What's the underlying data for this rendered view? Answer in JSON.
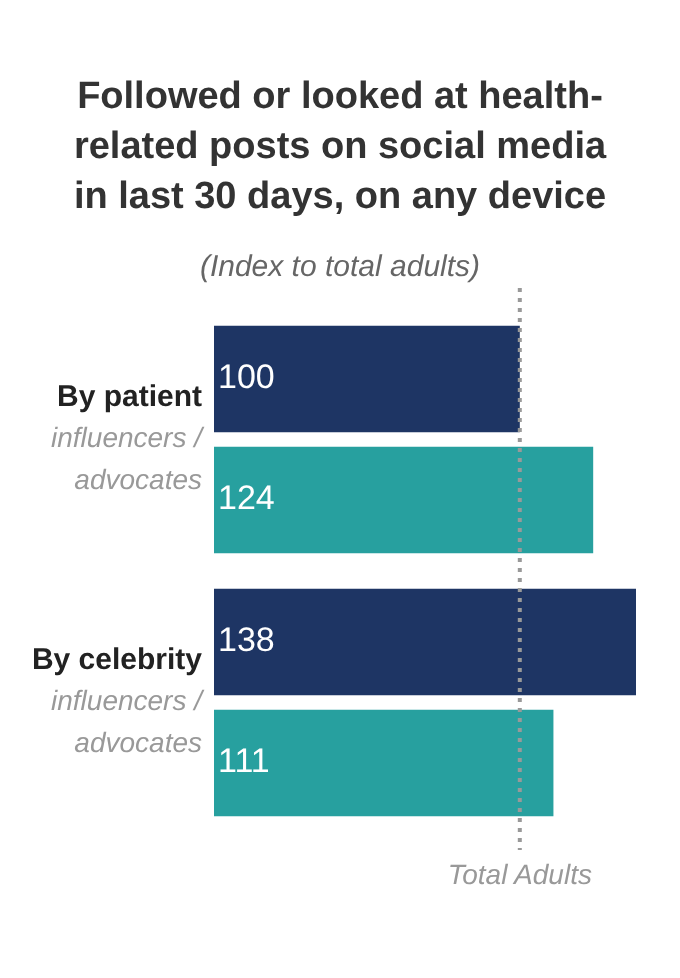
{
  "chart_data": {
    "type": "bar",
    "orientation": "horizontal",
    "title": "Followed or looked at health-related posts on social media in last 30 days, on any device",
    "subtitle": "(Index to total adults)",
    "categories": [
      "By patient\ninfluencers /\nadvocates",
      "By celebrity\ninfluencers /\nadvocates"
    ],
    "series": [
      {
        "color": "#1e3564",
        "values": [
          100,
          138
        ]
      },
      {
        "color": "#27a09f",
        "values": [
          124,
          111
        ]
      }
    ],
    "data_labels": true,
    "legend": false,
    "ref_lines": [
      {
        "axis": "x",
        "value": 100,
        "label": "Total Adults",
        "color": "#999999",
        "line_style": "dotted"
      }
    ]
  }
}
